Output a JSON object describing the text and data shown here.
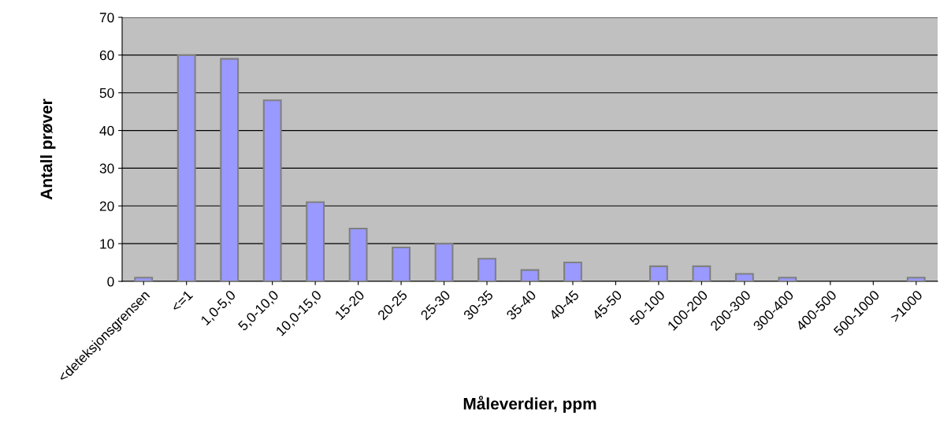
{
  "chart_data": {
    "type": "bar",
    "xlabel": "Måleverdier, ppm",
    "ylabel": "Antall prøver",
    "categories": [
      "<deteksjonsgrensen",
      "<=1",
      "1,0-5,0",
      "5,0-10,0",
      "10,0-15,0",
      "15-20",
      "20-25",
      "25-30",
      "30-35",
      "35-40",
      "40-45",
      "45-50",
      "50-100",
      "100-200",
      "200-300",
      "300-400",
      "400-500",
      "500-1000",
      ">1000"
    ],
    "values": [
      1,
      60,
      59,
      48,
      21,
      14,
      9,
      10,
      6,
      3,
      5,
      0,
      4,
      4,
      2,
      1,
      0,
      0,
      1
    ],
    "color": "#9999ff",
    "ylim": [
      0,
      70
    ],
    "yticks": [
      0,
      10,
      20,
      30,
      40,
      50,
      60,
      70
    ],
    "grid": "y",
    "legend": false
  }
}
